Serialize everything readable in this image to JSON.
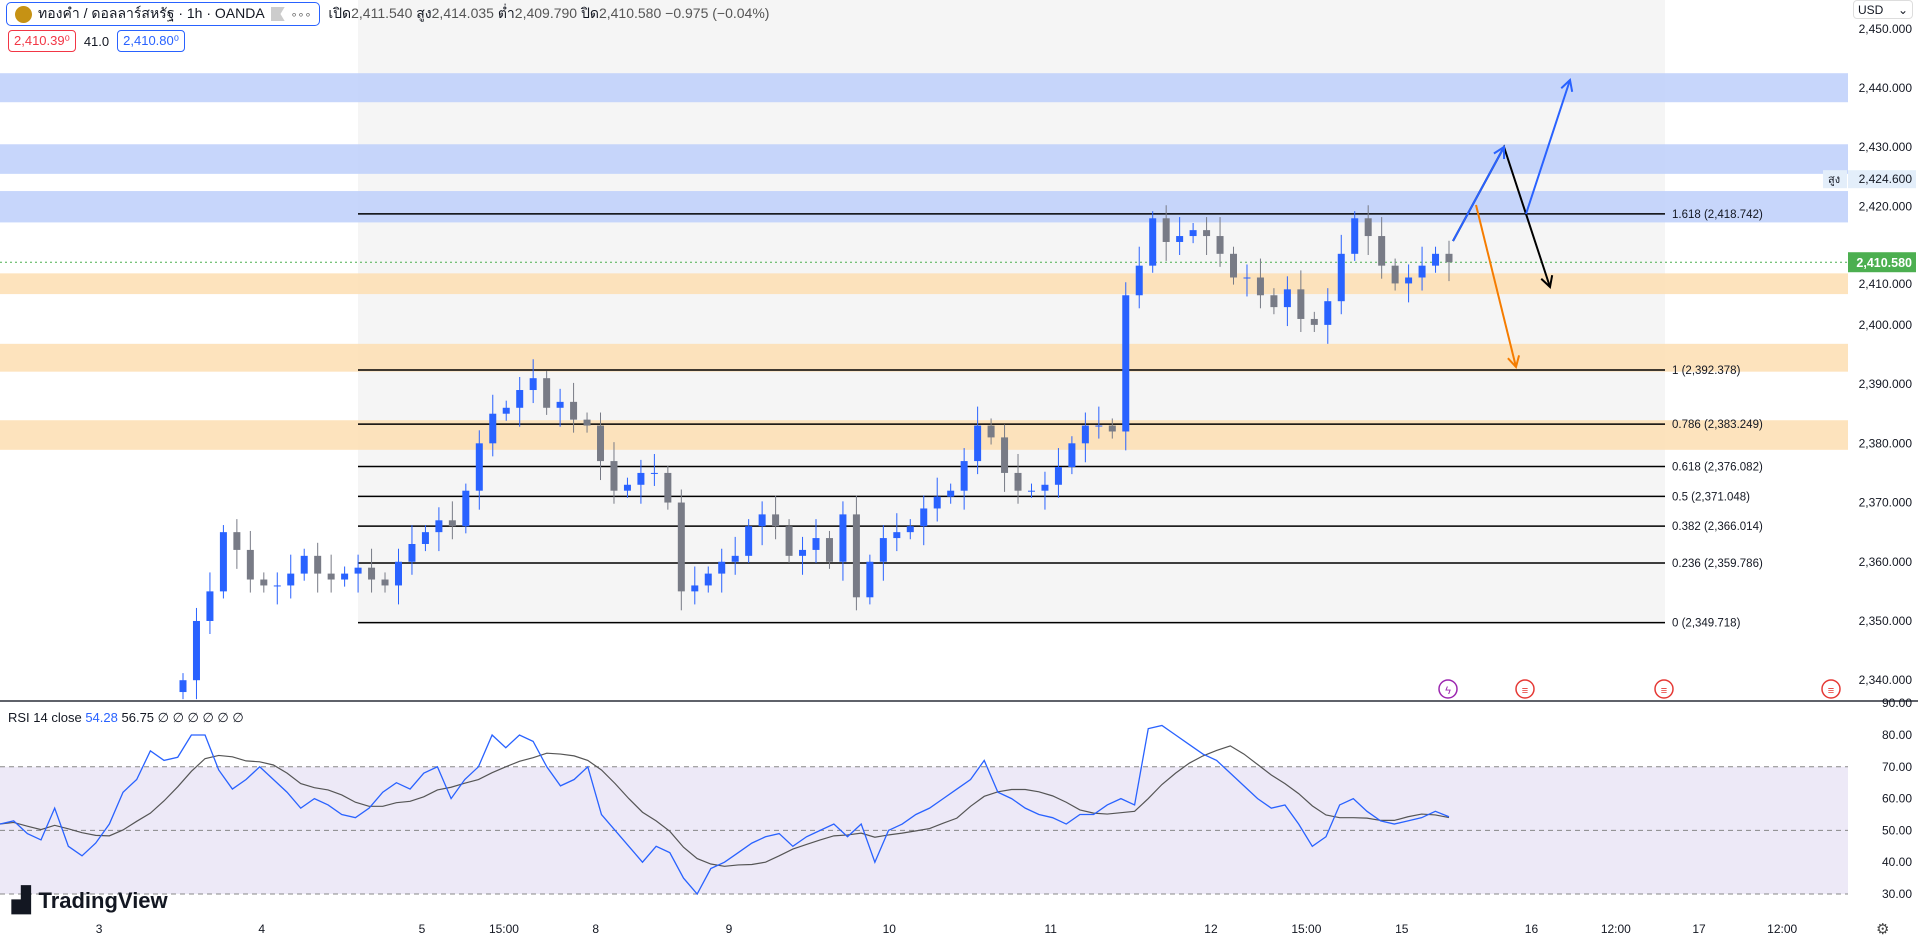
{
  "header": {
    "symbol": "ทองคำ / ดอลลาร์สหรัฐ · 1h · OANDA",
    "more": "∘∘∘",
    "open_label": "เปิด",
    "open": "2,411.540",
    "high_label": "สูง",
    "high": "2,414.035",
    "low_label": "ต่ำ",
    "low": "2,409.790",
    "close_label": "ปิด",
    "close": "2,410.580",
    "change": "−0.975 (−0.04%)"
  },
  "quotes": {
    "sell": "2,410.39⁰",
    "spread": "41.0",
    "buy": "2,410.80⁰"
  },
  "currency": "USD",
  "colors": {
    "up": "#2962ff",
    "down": "#787b86",
    "blue_zone": "#c1d1fb",
    "orange_zone": "#fde0b6",
    "last_price": "#4caf50",
    "rsi": "#2962ff",
    "rsi_ma": "#555555"
  },
  "chart_data": [
    {
      "type": "candlestick",
      "title": "ทองคำ / ดอลลาร์สหรัฐ · 1h · OANDA",
      "ylim": [
        2335,
        2452
      ],
      "y_ticks": [
        "2,450.000",
        "2,440.000",
        "2,430.000",
        "2,420.000",
        "2,410.000",
        "2,400.000",
        "2,390.000",
        "2,380.000",
        "2,370.000",
        "2,360.000",
        "2,350.000",
        "2,340.000"
      ],
      "closes": [
        2340,
        2350,
        2355,
        2365,
        2362,
        2357,
        2356,
        2356,
        2358,
        2361,
        2358,
        2357,
        2358,
        2359,
        2357,
        2356,
        2360,
        2363,
        2365,
        2367,
        2366,
        2372,
        2380,
        2385,
        2386,
        2389,
        2391,
        2386,
        2387,
        2384,
        2383,
        2377,
        2372,
        2373,
        2375,
        2375,
        2370,
        2355,
        2356,
        2358,
        2360,
        2361,
        2366,
        2368,
        2366,
        2361,
        2362,
        2364,
        2360,
        2368,
        2354,
        2360,
        2364,
        2365,
        2366,
        2369,
        2371,
        2372,
        2377,
        2383,
        2381,
        2375,
        2372,
        2372,
        2373,
        2376,
        2380,
        2383,
        2383,
        2382,
        2405,
        2410,
        2418,
        2414,
        2415,
        2416,
        2415,
        2412,
        2408,
        2408,
        2405,
        2403,
        2406,
        2401,
        2400,
        2404,
        2412,
        2418,
        2415,
        2410,
        2407,
        2408,
        2410,
        2412,
        2410.58
      ],
      "last_price": "2,410.580",
      "high_marker_label": "สูง",
      "high_marker": "2,424.600",
      "fib_levels": [
        {
          "label": "1.618 (2,418.742)",
          "price": 2418.742
        },
        {
          "label": "1 (2,392.378)",
          "price": 2392.378
        },
        {
          "label": "0.786 (2,383.249)",
          "price": 2383.249
        },
        {
          "label": "0.618 (2,376.082)",
          "price": 2376.082
        },
        {
          "label": "0.5 (2,371.048)",
          "price": 2371.048
        },
        {
          "label": "0.382 (2,366.014)",
          "price": 2366.014
        },
        {
          "label": "0.236 (2,359.786)",
          "price": 2359.786
        },
        {
          "label": "0 (2,349.718)",
          "price": 2349.718
        }
      ],
      "zones": [
        {
          "color": "blue",
          "from": 2437.6,
          "to": 2442.5
        },
        {
          "color": "blue",
          "from": 2425.5,
          "to": 2430.5
        },
        {
          "color": "blue",
          "from": 2417.3,
          "to": 2422.6
        },
        {
          "color": "orange",
          "from": 2405.2,
          "to": 2408.7
        },
        {
          "color": "orange",
          "from": 2392.1,
          "to": 2396.8
        },
        {
          "color": "orange",
          "from": 2378.9,
          "to": 2383.9
        }
      ]
    },
    {
      "type": "line",
      "title": "RSI 14 close",
      "value": "54.28",
      "ma_value": "56.75",
      "extra": "∅ ∅ ∅ ∅ ∅ ∅",
      "ylim": [
        28,
        92
      ],
      "y_ticks": [
        "90.00",
        "80.00",
        "70.00",
        "60.00",
        "50.00",
        "40.00",
        "30.00"
      ],
      "bands": [
        70,
        50,
        30
      ],
      "rsi": [
        52,
        53,
        49,
        47,
        57,
        45,
        42,
        46,
        52,
        62,
        66,
        75,
        72,
        73,
        80,
        80,
        69,
        63,
        66,
        70,
        66,
        62,
        57,
        60,
        58,
        55,
        54,
        57,
        62,
        65,
        63,
        68,
        70,
        60,
        66,
        70,
        80,
        76,
        80,
        78,
        70,
        64,
        66,
        70,
        55,
        50,
        45,
        40,
        45,
        43,
        35,
        30,
        38,
        40,
        43,
        46,
        48,
        49,
        45,
        48,
        50,
        52,
        48,
        52,
        40,
        50,
        52,
        55,
        57,
        60,
        63,
        66,
        72,
        62,
        60,
        57,
        55,
        54,
        52,
        55,
        55,
        58,
        60,
        58,
        82,
        83,
        80,
        77,
        74,
        72,
        68,
        64,
        60,
        57,
        58,
        52,
        45,
        48,
        58,
        60,
        56,
        53,
        52,
        53,
        54,
        56,
        54.28
      ]
    }
  ],
  "time_axis": [
    "3",
    "4",
    "5",
    "15:00",
    "8",
    "9",
    "10",
    "11",
    "12",
    "15:00",
    "15",
    "16",
    "12:00",
    "17",
    "12:00"
  ],
  "events": [
    {
      "icon": "lightning-icon"
    },
    {
      "icon": "us-flag-icon"
    },
    {
      "icon": "us-flag-icon"
    },
    {
      "icon": "us-flag-icon"
    }
  ],
  "logo": "TradingView"
}
